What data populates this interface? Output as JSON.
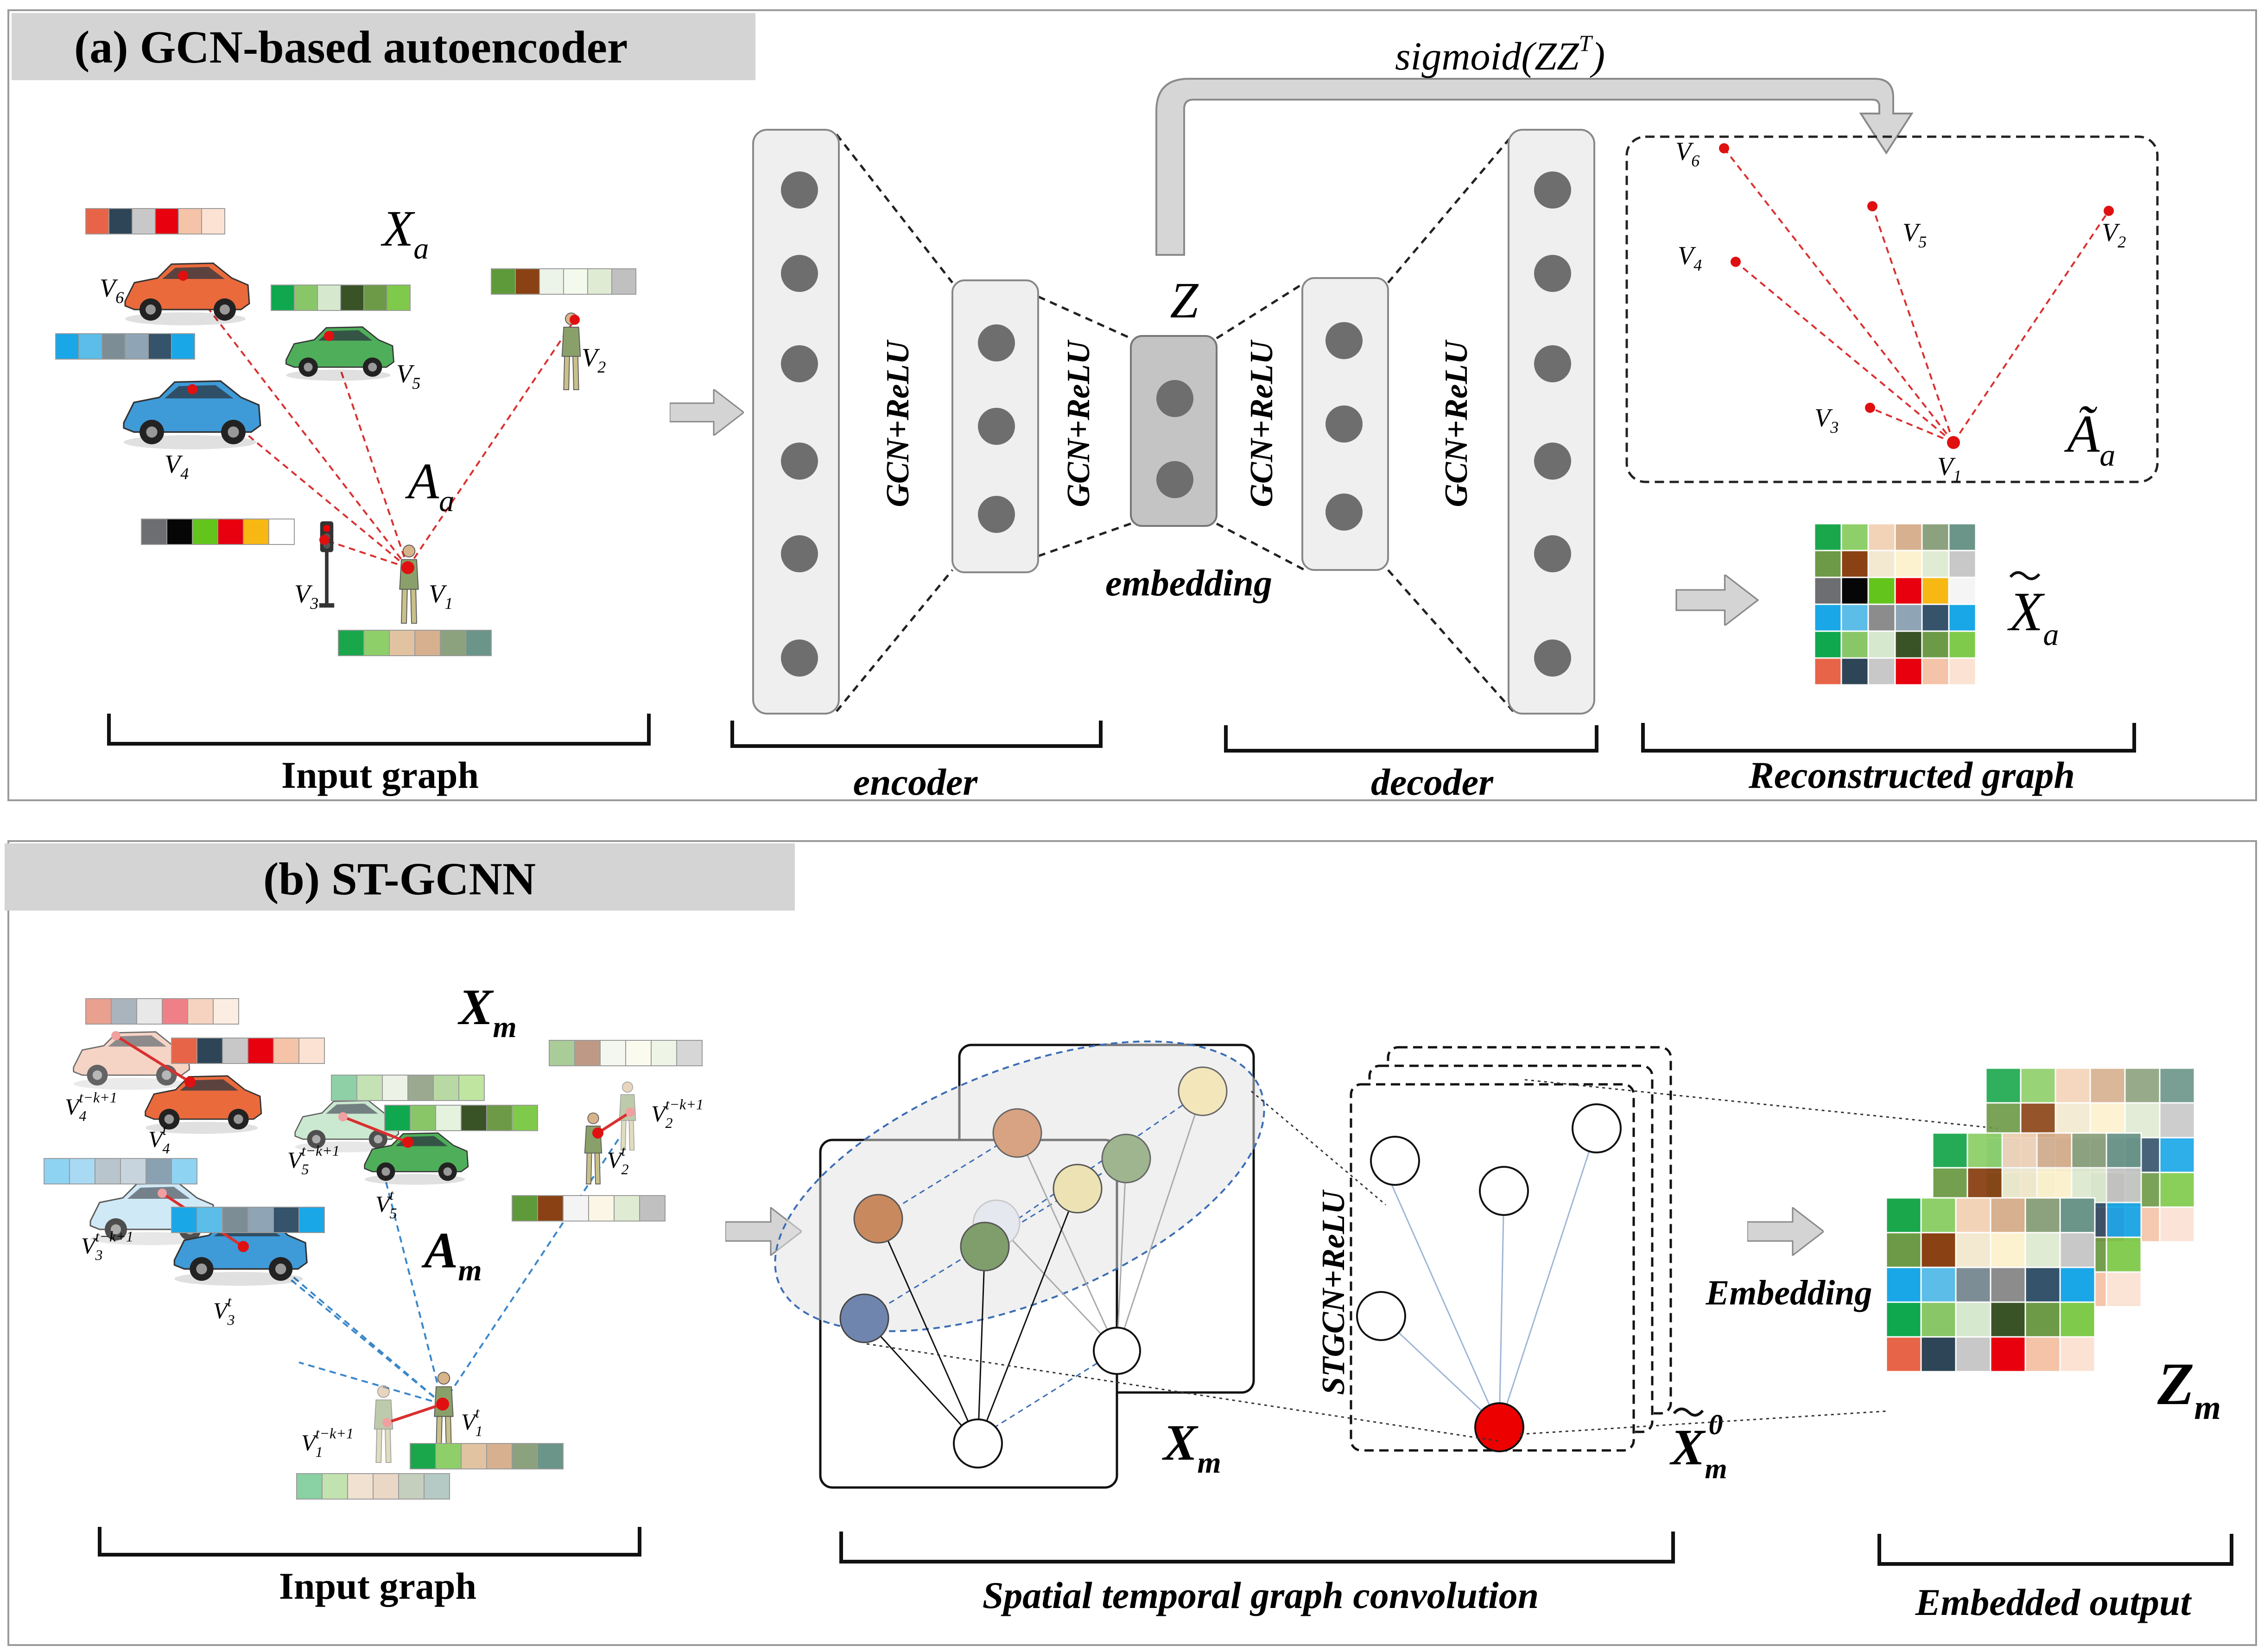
{
  "panel_a": {
    "title": "(a) GCN-based autoencoder",
    "sigmoid": "sigmoid(ZZ",
    "sigmoid_sup": "T",
    "sigmoid_close": ")",
    "z_label": "Z",
    "gcn_relu": "GCN+ReLU",
    "embedding": "embedding",
    "x_a_letter": "X",
    "a_a_letter": "A",
    "sub_a": "a",
    "nodes": [
      "V",
      "V",
      "V",
      "V",
      "V",
      "V"
    ],
    "node_subs": [
      "1",
      "2",
      "3",
      "4",
      "5",
      "6"
    ],
    "brackets": [
      "Input graph",
      "encoder",
      "decoder",
      "Reconstructed graph"
    ],
    "feature_colors": {
      "v6": [
        "#e86448",
        "#2d4557",
        "#c8c8c8",
        "#e8000e",
        "#f5c3a8",
        "#fbe2d3"
      ],
      "v4": [
        "#19a7e8",
        "#5bbde8",
        "#7d8d96",
        "#8fa5b5",
        "#35536b",
        "#19a7e8"
      ],
      "v5": [
        "#0fa84e",
        "#89c668",
        "#d6e8cd",
        "#3a5326",
        "#6d9a46",
        "#7fca4a"
      ],
      "v2": [
        "#5f9a3a",
        "#8a4214",
        "#ecf4ea",
        "#f4f9ed",
        "#e0ebd3",
        "#c0c0c0"
      ],
      "v3": [
        "#6d6e71",
        "#060606",
        "#63c51c",
        "#e8000e",
        "#f8b814",
        "#ffffff"
      ],
      "v1": [
        "#1aa74c",
        "#8ecf6a",
        "#e1c3a2",
        "#d7b08f",
        "#8ca27e",
        "#6b9589"
      ]
    },
    "recon_matrix": [
      [
        "#1aa74c",
        "#8ecf6a",
        "#f3d3b8",
        "#d7b08f",
        "#8ca27e",
        "#6b9589"
      ],
      [
        "#6d9a46",
        "#8a4214",
        "#f3e9d1",
        "#fdf2cf",
        "#e0ebd3",
        "#c8c8c8"
      ],
      [
        "#6d6e71",
        "#060606",
        "#63c51c",
        "#e8000e",
        "#f8b814",
        "#f5f5f5"
      ],
      [
        "#19a7e8",
        "#5bbde8",
        "#8c8c8c",
        "#8fa5b5",
        "#35536b",
        "#19a7e8"
      ],
      [
        "#0fa84e",
        "#89c668",
        "#d6e8cd",
        "#3a5326",
        "#6d9a46",
        "#7fca4a"
      ],
      [
        "#e86448",
        "#2d4557",
        "#c8c8c8",
        "#e8000e",
        "#f5c3a8",
        "#fbe2d3"
      ]
    ]
  },
  "panel_b": {
    "title": "(b) ST-GCNN",
    "x_m_letter": "X",
    "a_m_letter": "A",
    "z_m_letter": "Z",
    "sub_m": "m",
    "xm0_sup": "0",
    "stgcn_relu": "STGCN+ReLU",
    "embedding_label": "Embedding",
    "v_letter": "V",
    "sup_tk": "t−k+1",
    "sup_t": "t",
    "brackets": [
      "Input graph",
      "Spatial temporal graph convolution",
      "Embedded output"
    ],
    "feature_colors": {
      "top": [
        "#e9a08e",
        "#a9b4bd",
        "#e8e8e8",
        "#f08088",
        "#f5d3c0",
        "#fcede3"
      ],
      "v4": [
        "#e86448",
        "#2d4557",
        "#c8c8c8",
        "#e8000e",
        "#f5c3a8",
        "#fbe2d3"
      ],
      "v5a": [
        "#8fd0a6",
        "#c5e2b5",
        "#ecf3e6",
        "#9ba991",
        "#b9d9a4",
        "#bfe5a0"
      ],
      "v5b": [
        "#0fa84e",
        "#89c668",
        "#e4f2de",
        "#3a5326",
        "#6d9a46",
        "#7fca4a"
      ],
      "v2a": [
        "#a9cc98",
        "#be9a86",
        "#f4f7f0",
        "#fbfaee",
        "#eef4e6",
        "#d6d6d6"
      ],
      "v2b": [
        "#5f9a3a",
        "#8a4214",
        "#f4f4f4",
        "#fcf6e6",
        "#e0ebd3",
        "#c0c0c0"
      ],
      "v3a": [
        "#8fd3f3",
        "#a9daf3",
        "#b9c5cc",
        "#c8d4dd",
        "#8aa1b2",
        "#8fd3f3"
      ],
      "v3b": [
        "#19a7e8",
        "#5bbde8",
        "#7d8d96",
        "#8fa5b5",
        "#35536b",
        "#19a7e8"
      ],
      "v1a": [
        "#8ad1a3",
        "#c2e3b0",
        "#f0e1d1",
        "#ead7c6",
        "#c5cfbe",
        "#b5cac4"
      ],
      "v1b": [
        "#1aa74c",
        "#8ecf6a",
        "#e1c3a2",
        "#d7b08f",
        "#8ca27e",
        "#6b9589"
      ]
    },
    "emb_matrix": [
      [
        "#1aa74c",
        "#8ecf6a",
        "#f3d3b8",
        "#d7b08f",
        "#8ca27e",
        "#6b9589"
      ],
      [
        "#6d9a46",
        "#8a4214",
        "#f3e9d1",
        "#fdf2cf",
        "#e0ebd3",
        "#c8c8c8"
      ],
      [
        "#19a7e8",
        "#5bbde8",
        "#7d8d96",
        "#8c8c8c",
        "#35536b",
        "#19a7e8"
      ],
      [
        "#0fa84e",
        "#89c668",
        "#d6e8cd",
        "#3a5326",
        "#6d9a46",
        "#7fca4a"
      ],
      [
        "#e86448",
        "#2d4557",
        "#c8c8c8",
        "#e8000e",
        "#f5c3a8",
        "#fbe2d3"
      ]
    ],
    "node_colors": {
      "orange": "#c9895f",
      "green": "#7f9e6c",
      "blue": "#7085ad",
      "light_orange": "#d8a382",
      "light_green": "#9eb590",
      "cream": "#f3e6bb",
      "cream2": "#ece2b3",
      "red": "#ed0000"
    }
  }
}
